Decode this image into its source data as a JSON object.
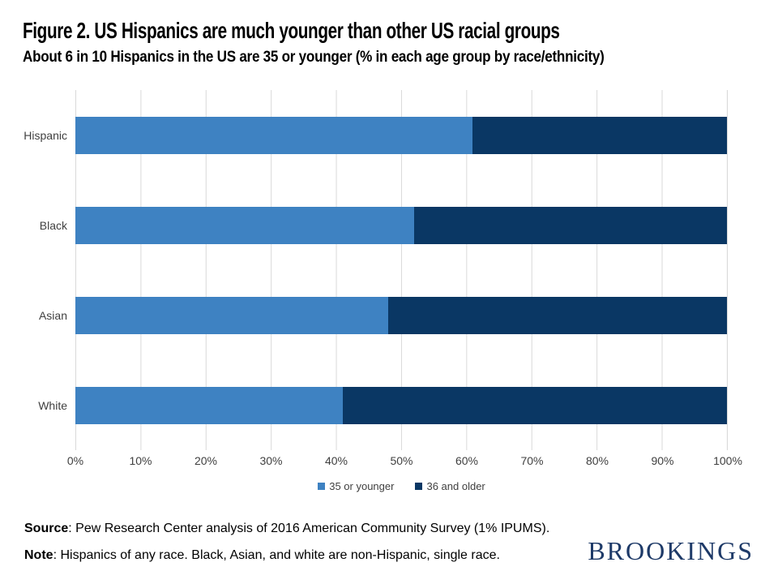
{
  "header": {
    "title": "Figure 2. US Hispanics are much younger than other US racial groups",
    "subtitle": "About 6 in 10 Hispanics in the US are 35 or younger (% in each age group by race/ethnicity)"
  },
  "chart_data": {
    "type": "bar",
    "variant": "horizontal-stacked",
    "categories": [
      "Hispanic",
      "Black",
      "Asian",
      "White"
    ],
    "series": [
      {
        "name": "35 or younger",
        "values": [
          61,
          52,
          48,
          41
        ],
        "color": "#3e82c2"
      },
      {
        "name": "36 and older",
        "values": [
          39,
          48,
          52,
          59
        ],
        "color": "#0a3764"
      }
    ],
    "xlim": [
      0,
      100
    ],
    "xtick_labels": [
      "0%",
      "10%",
      "20%",
      "30%",
      "40%",
      "50%",
      "60%",
      "70%",
      "80%",
      "90%",
      "100%"
    ],
    "grid": "vertical-gridlines",
    "gridline_color": "#d9d9d9",
    "legend_position": "bottom-center"
  },
  "footer": {
    "source_label": "Source",
    "source_text": ": Pew Research Center analysis of 2016 American Community Survey (1% IPUMS).",
    "note_label": "Note",
    "note_text": ": Hispanics of any race. Black, Asian, and white are non-Hispanic, single race.",
    "logo": "BROOKINGS",
    "logo_color": "#1e3a68"
  }
}
